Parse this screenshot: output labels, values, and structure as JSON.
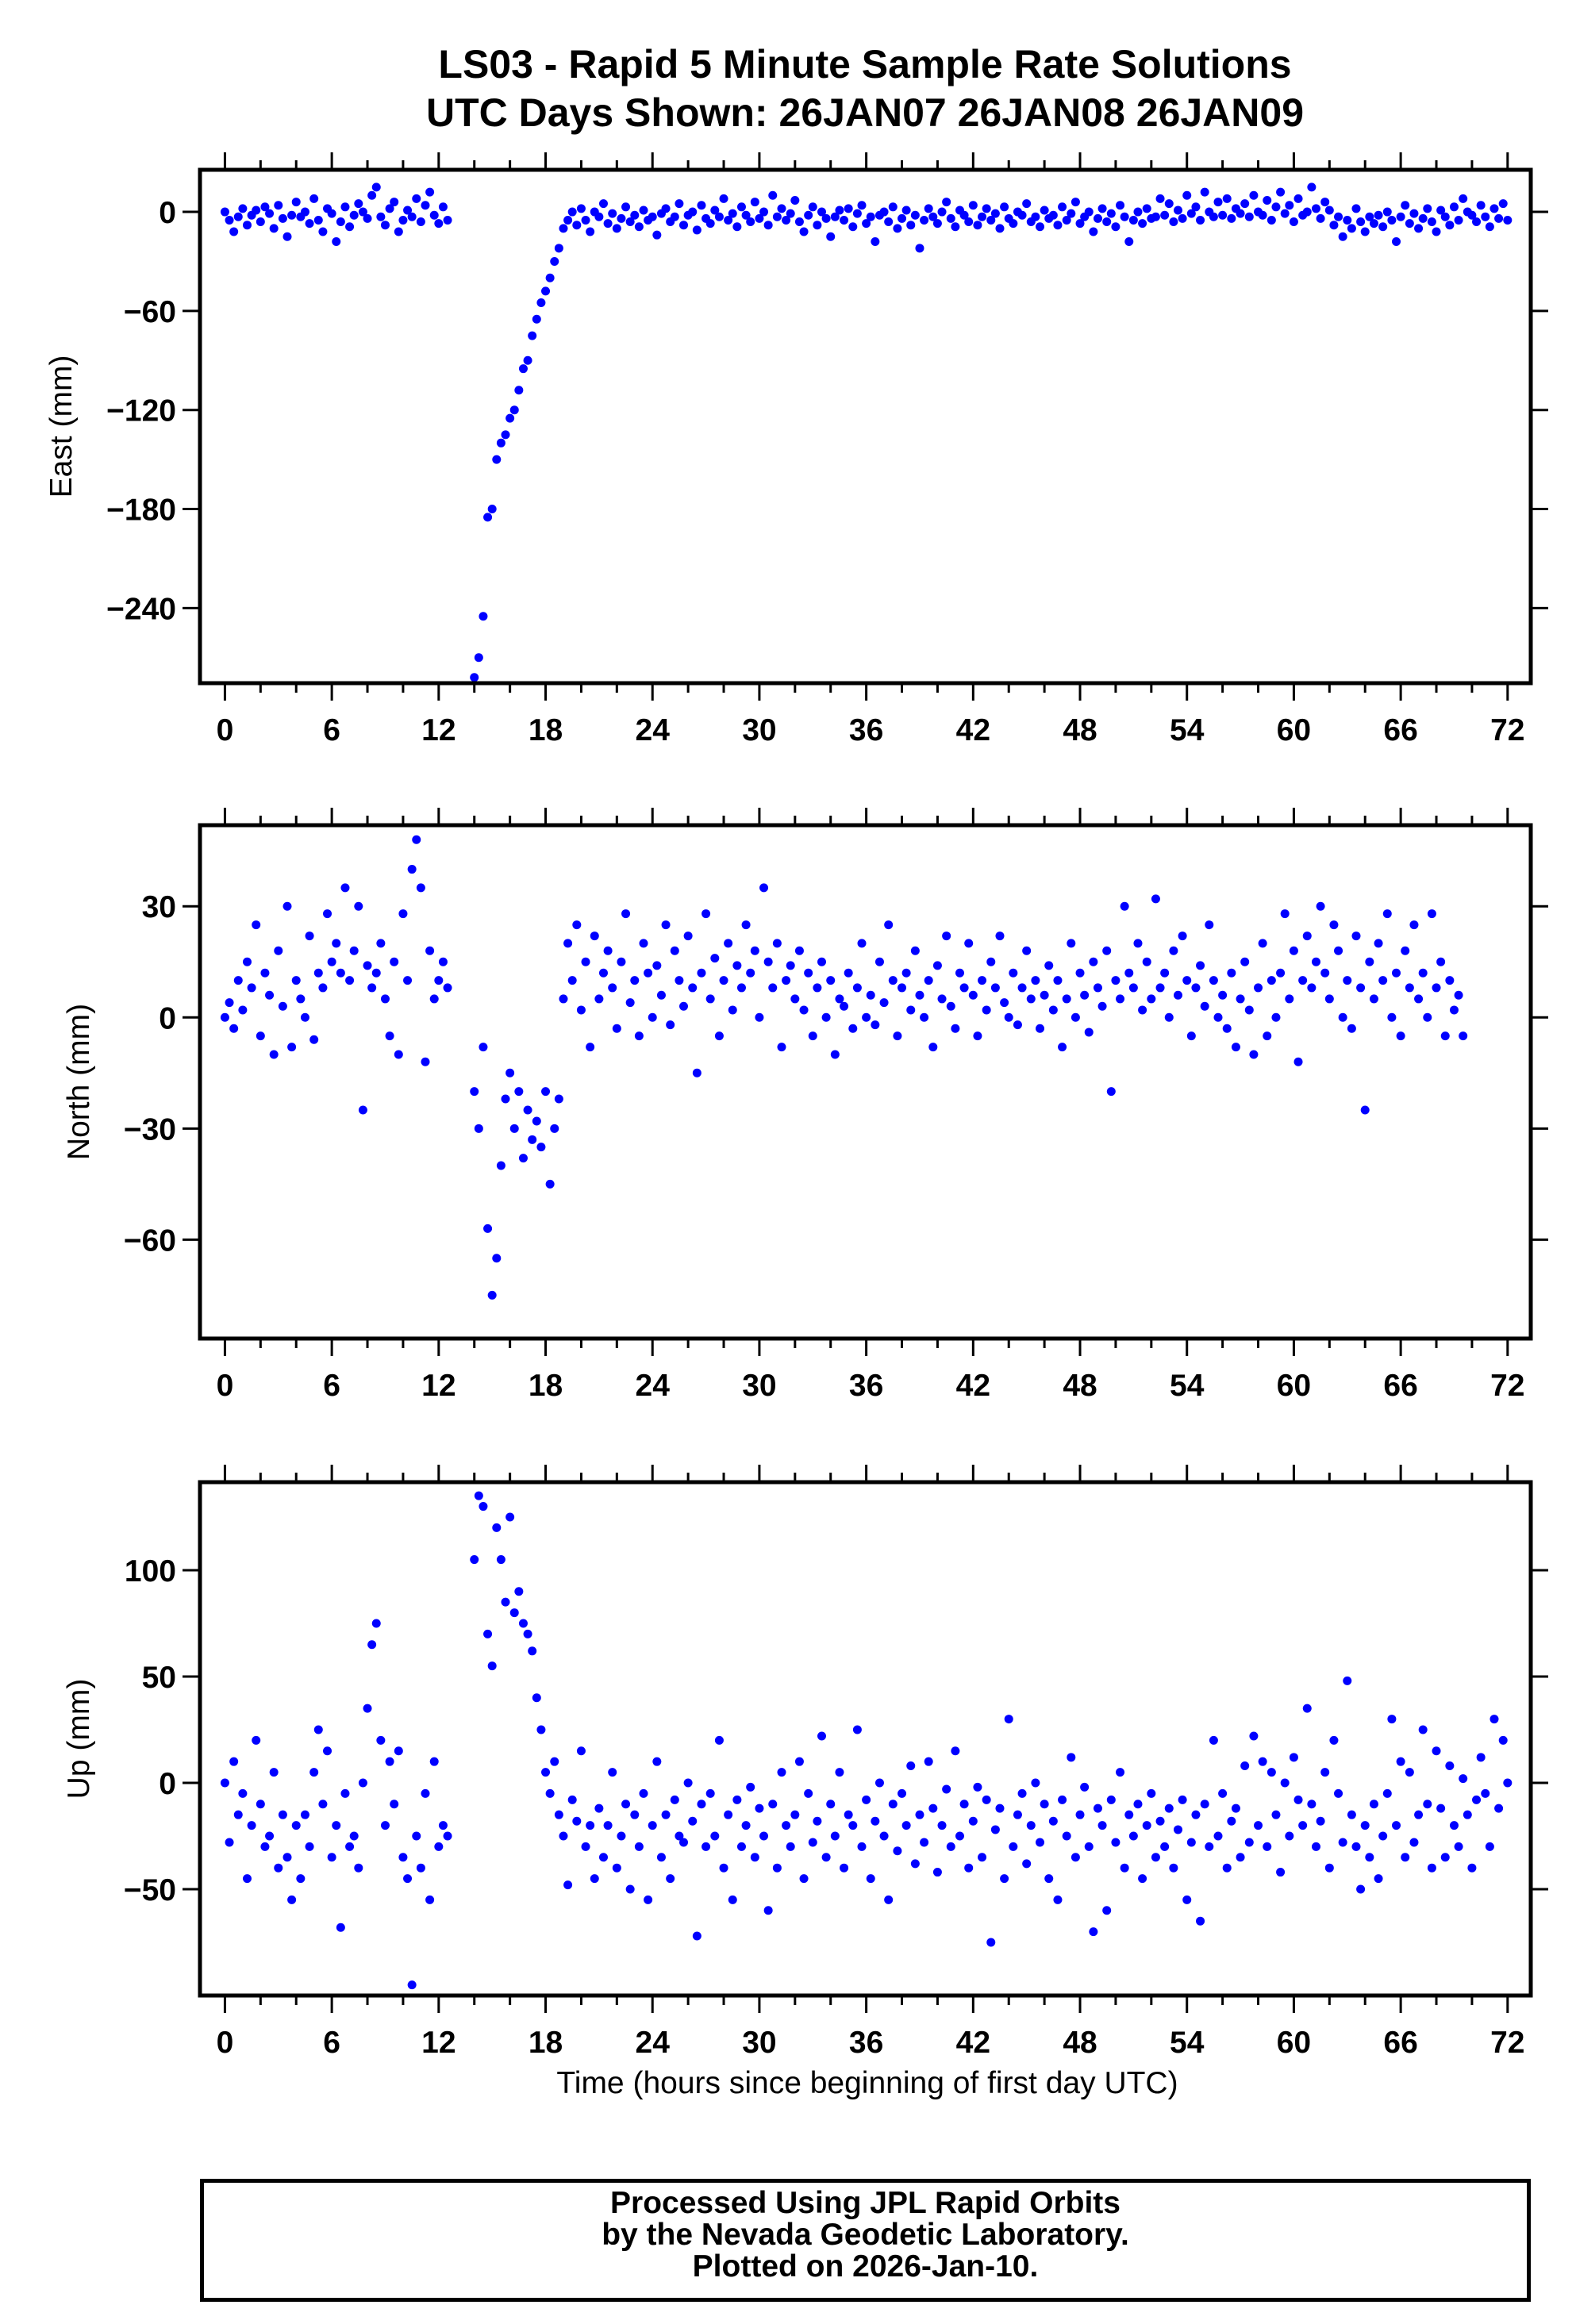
{
  "title": {
    "line1": "LS03 - Rapid 5 Minute Sample Rate Solutions",
    "line2": "UTC Days Shown:  26JAN07 26JAN08 26JAN09"
  },
  "footer": {
    "line1": "Processed Using JPL Rapid Orbits",
    "line2": "by the Nevada Geodetic Laboratory.",
    "line3": "Plotted on 2026-Jan-10."
  },
  "colors": {
    "points": "#0000ff",
    "axes": "#000000"
  },
  "chart_data": [
    {
      "type": "scatter",
      "ylabel": "East (mm)",
      "xlabel": "",
      "xlim": [
        -1.4,
        73.3
      ],
      "ylim": [
        -285.5,
        25.5
      ],
      "xticks": [
        0,
        6,
        12,
        18,
        24,
        30,
        36,
        42,
        48,
        54,
        60,
        66,
        72
      ],
      "yticks": [
        0,
        -60,
        -120,
        -180,
        -240
      ],
      "ytick_labels": [
        "0",
        "−60",
        "−120",
        "−180",
        "−240"
      ],
      "grid": false,
      "x_start": 0,
      "x_step": 0.25,
      "y": [
        0,
        -5,
        -12,
        -3,
        2,
        -8,
        -2,
        1,
        -6,
        3,
        -1,
        -10,
        4,
        -4,
        -15,
        -2,
        6,
        -3,
        0,
        -7,
        8,
        -5,
        -12,
        2,
        -1,
        -18,
        -6,
        3,
        -9,
        -2,
        5,
        0,
        -4,
        10,
        15,
        -3,
        -8,
        2,
        6,
        -12,
        -5,
        1,
        -3,
        8,
        -6,
        4,
        12,
        -2,
        -7,
        3,
        -5,
        null,
        null,
        null,
        null,
        null,
        -282,
        -270,
        -245,
        -185,
        -180,
        -150,
        -140,
        -135,
        -125,
        -120,
        -108,
        -95,
        -90,
        -75,
        -65,
        -55,
        -48,
        -40,
        -30,
        -22,
        -10,
        -5,
        0,
        -8,
        2,
        -5,
        -12,
        0,
        -3,
        5,
        -7,
        -1,
        -10,
        -4,
        3,
        -6,
        -2,
        -9,
        1,
        -5,
        -3,
        -14,
        -1,
        2,
        -6,
        -3,
        5,
        -8,
        -2,
        0,
        -11,
        4,
        -4,
        -7,
        1,
        -3,
        8,
        -5,
        -1,
        -9,
        3,
        -2,
        -6,
        6,
        -4,
        0,
        -8,
        10,
        -3,
        2,
        -5,
        -1,
        7,
        -6,
        -12,
        -2,
        3,
        -8,
        0,
        -4,
        -15,
        -3,
        1,
        -5,
        2,
        -9,
        -1,
        4,
        -7,
        -3,
        -18,
        -2,
        0,
        -6,
        3,
        -10,
        -4,
        1,
        -8,
        -2,
        -22,
        -5,
        2,
        -3,
        -7,
        0,
        6,
        -4,
        -9,
        1,
        -2,
        -6,
        4,
        -8,
        -3,
        2,
        -5,
        -1,
        -10,
        3,
        -4,
        -7,
        0,
        -2,
        5,
        -6,
        -3,
        -9,
        1,
        -4,
        -2,
        -8,
        3,
        -5,
        -1,
        6,
        -7,
        -3,
        0,
        -12,
        -4,
        2,
        -6,
        -1,
        -9,
        4,
        -3,
        -18,
        -5,
        0,
        -7,
        2,
        -4,
        -3,
        8,
        -2,
        5,
        -6,
        1,
        -4,
        10,
        -1,
        3,
        -5,
        12,
        0,
        -3,
        6,
        -2,
        8,
        -4,
        2,
        -1,
        5,
        -3,
        10,
        0,
        -2,
        7,
        -5,
        3,
        12,
        -1,
        4,
        -6,
        8,
        -2,
        0,
        15,
        2,
        -4,
        6,
        1,
        -8,
        -3,
        -15,
        -5,
        -10,
        2,
        -6,
        -12,
        -3,
        -7,
        -2,
        -9,
        0,
        -5,
        -18,
        -3,
        4,
        -7,
        -1,
        -10,
        -4,
        2,
        -6,
        -12,
        1,
        -3,
        -8,
        3,
        -5,
        8,
        0,
        -2,
        -6,
        4,
        -3,
        -9,
        2,
        -4,
        5,
        -5
      ]
    },
    {
      "type": "scatter",
      "ylabel": "North (mm)",
      "xlabel": "",
      "xlim": [
        -1.4,
        73.3
      ],
      "ylim": [
        -86.7,
        51.9
      ],
      "xticks": [
        0,
        6,
        12,
        18,
        24,
        30,
        36,
        42,
        48,
        54,
        60,
        66,
        72
      ],
      "yticks": [
        30,
        0,
        -30,
        -60
      ],
      "ytick_labels": [
        "30",
        "0",
        "−30",
        "−60"
      ],
      "grid": false,
      "x_start": 0,
      "x_step": 0.25,
      "y": [
        0,
        4,
        -3,
        10,
        2,
        15,
        8,
        25,
        -5,
        12,
        6,
        -10,
        18,
        3,
        30,
        -8,
        10,
        5,
        0,
        22,
        -6,
        12,
        8,
        28,
        15,
        20,
        12,
        35,
        10,
        18,
        30,
        -25,
        14,
        8,
        12,
        20,
        5,
        -5,
        15,
        -10,
        28,
        10,
        40,
        48,
        35,
        -12,
        18,
        5,
        10,
        15,
        8,
        null,
        null,
        null,
        null,
        null,
        -20,
        -30,
        -8,
        -57,
        -75,
        -65,
        -40,
        -22,
        -15,
        -30,
        -20,
        -38,
        -25,
        -33,
        -28,
        -35,
        -20,
        -45,
        -30,
        -22,
        5,
        20,
        10,
        25,
        2,
        15,
        -8,
        22,
        5,
        12,
        18,
        8,
        -3,
        15,
        28,
        4,
        10,
        -5,
        20,
        12,
        0,
        14,
        6,
        25,
        -2,
        18,
        10,
        3,
        22,
        8,
        -15,
        12,
        28,
        5,
        16,
        -5,
        10,
        20,
        2,
        14,
        8,
        25,
        12,
        18,
        0,
        35,
        15,
        8,
        20,
        -8,
        10,
        14,
        5,
        18,
        2,
        12,
        -5,
        8,
        15,
        0,
        10,
        -10,
        5,
        3,
        12,
        -3,
        8,
        20,
        0,
        6,
        -2,
        15,
        4,
        25,
        10,
        -5,
        8,
        12,
        2,
        18,
        6,
        0,
        10,
        -8,
        14,
        5,
        22,
        3,
        -3,
        12,
        8,
        20,
        6,
        -5,
        10,
        2,
        15,
        8,
        22,
        4,
        0,
        12,
        -2,
        8,
        18,
        5,
        10,
        -3,
        6,
        14,
        2,
        10,
        -8,
        5,
        20,
        0,
        12,
        6,
        -4,
        15,
        8,
        3,
        18,
        -20,
        10,
        5,
        30,
        12,
        8,
        20,
        2,
        15,
        5,
        32,
        8,
        12,
        0,
        18,
        6,
        22,
        10,
        -5,
        8,
        14,
        3,
        25,
        10,
        0,
        6,
        -3,
        12,
        -8,
        5,
        15,
        2,
        -10,
        8,
        20,
        -5,
        10,
        0,
        12,
        28,
        5,
        18,
        -12,
        10,
        22,
        8,
        15,
        30,
        12,
        5,
        25,
        18,
        0,
        10,
        -3,
        22,
        8,
        -25,
        15,
        5,
        20,
        10,
        28,
        0,
        12,
        -5,
        18,
        8,
        25,
        5,
        12,
        0,
        28,
        8,
        15,
        -5,
        10,
        2,
        6,
        -5
      ]
    },
    {
      "type": "scatter",
      "ylabel": "Up (mm)",
      "xlabel": "Time (hours since beginning of first day UTC)",
      "xlim": [
        -1.4,
        73.3
      ],
      "ylim": [
        -100,
        141.4
      ],
      "xticks": [
        0,
        6,
        12,
        18,
        24,
        30,
        36,
        42,
        48,
        54,
        60,
        66,
        72
      ],
      "yticks": [
        100,
        50,
        0,
        -50
      ],
      "ytick_labels": [
        "100",
        "50",
        "0",
        "−50"
      ],
      "grid": false,
      "x_start": 0,
      "x_step": 0.25,
      "y": [
        0,
        -28,
        10,
        -15,
        -5,
        -45,
        -20,
        20,
        -10,
        -30,
        -25,
        5,
        -40,
        -15,
        -35,
        -55,
        -20,
        -45,
        -15,
        -30,
        5,
        25,
        -10,
        15,
        -35,
        -20,
        -68,
        -5,
        -30,
        -25,
        -40,
        0,
        35,
        65,
        75,
        20,
        -20,
        10,
        -10,
        15,
        -35,
        -45,
        -95,
        -25,
        -40,
        -5,
        -55,
        10,
        -30,
        -20,
        -25,
        null,
        null,
        null,
        null,
        null,
        105,
        135,
        130,
        70,
        55,
        120,
        105,
        85,
        125,
        80,
        90,
        75,
        70,
        62,
        40,
        25,
        5,
        -5,
        10,
        -15,
        -25,
        -48,
        -8,
        -18,
        15,
        -30,
        -20,
        -45,
        -12,
        -35,
        -20,
        5,
        -40,
        -25,
        -10,
        -50,
        -15,
        -30,
        -5,
        -55,
        -20,
        10,
        -35,
        -15,
        -45,
        -8,
        -25,
        -28,
        0,
        -18,
        -72,
        -10,
        -30,
        -5,
        -25,
        20,
        -40,
        -15,
        -55,
        -8,
        -30,
        -20,
        -2,
        -35,
        -12,
        -25,
        -60,
        -10,
        -40,
        5,
        -20,
        -30,
        -15,
        10,
        -45,
        -5,
        -28,
        -18,
        22,
        -35,
        -10,
        -25,
        5,
        -40,
        -15,
        -20,
        25,
        -30,
        -8,
        -45,
        -18,
        0,
        -25,
        -55,
        -10,
        -32,
        -5,
        -20,
        8,
        -38,
        -15,
        -28,
        10,
        -12,
        -42,
        -20,
        -3,
        -30,
        15,
        -25,
        -10,
        -40,
        -18,
        -2,
        -35,
        -8,
        -75,
        -22,
        -12,
        -45,
        30,
        -30,
        -15,
        -5,
        -38,
        -20,
        0,
        -28,
        -10,
        -45,
        -18,
        -55,
        -8,
        -25,
        12,
        -35,
        -15,
        -2,
        -30,
        -70,
        -12,
        -20,
        -60,
        -8,
        -28,
        5,
        -40,
        -15,
        -25,
        -10,
        -45,
        -20,
        -5,
        -35,
        -18,
        -30,
        -12,
        -40,
        -22,
        -8,
        -55,
        -28,
        -15,
        -65,
        -10,
        -30,
        20,
        -25,
        -5,
        -40,
        -18,
        -12,
        -35,
        8,
        -28,
        22,
        -20,
        10,
        -30,
        5,
        -15,
        -42,
        0,
        -25,
        12,
        -8,
        -20,
        35,
        -10,
        -30,
        -18,
        5,
        -40,
        20,
        -5,
        -28,
        48,
        -15,
        -30,
        -50,
        -20,
        -35,
        -10,
        -45,
        -25,
        -5,
        30,
        -20,
        10,
        -35,
        5,
        -28,
        -15,
        25,
        -10,
        -40,
        15,
        -12,
        -35,
        8,
        -20,
        -30,
        2,
        -15,
        -40,
        -8,
        12,
        -5,
        -30,
        30,
        -12,
        20,
        0
      ]
    }
  ]
}
